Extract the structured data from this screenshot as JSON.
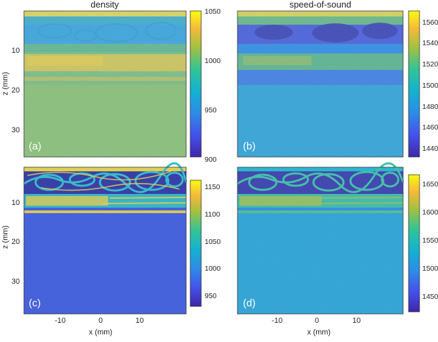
{
  "panels": [
    {
      "id": "a",
      "title": "density",
      "label": "(a)",
      "yTicks": [
        "10",
        "20",
        "30"
      ],
      "ylabel": "z (mm)",
      "xTicks": [],
      "xlabel": "",
      "colorbarTicks": [
        "1050",
        "1000",
        "950",
        "900"
      ]
    },
    {
      "id": "b",
      "title": "speed-of-sound",
      "label": "(b)",
      "yTicks": [],
      "ylabel": "",
      "xTicks": [],
      "xlabel": "",
      "colorbarTicks": [
        "1560",
        "1540",
        "1520",
        "1500",
        "1480",
        "1460",
        "1440"
      ]
    },
    {
      "id": "c",
      "title": "",
      "label": "(c)",
      "yTicks": [
        "10",
        "20",
        "30"
      ],
      "ylabel": "z (mm)",
      "xTicks": [
        "-10",
        "0",
        "10"
      ],
      "xlabel": "x (mm)",
      "colorbarTicks": [
        "1150",
        "1100",
        "1050",
        "1000",
        "950"
      ]
    },
    {
      "id": "d",
      "title": "",
      "label": "(d)",
      "yTicks": [],
      "ylabel": "",
      "xTicks": [
        "-10",
        "0",
        "10"
      ],
      "xlabel": "x (mm)",
      "colorbarTicks": [
        "1650",
        "1600",
        "1550",
        "1500",
        "1450"
      ]
    }
  ],
  "colors": {
    "parula_dark": "#3e26a8",
    "parula_teal": "#19b2ab",
    "parula_yellow": "#f9fb0e"
  }
}
